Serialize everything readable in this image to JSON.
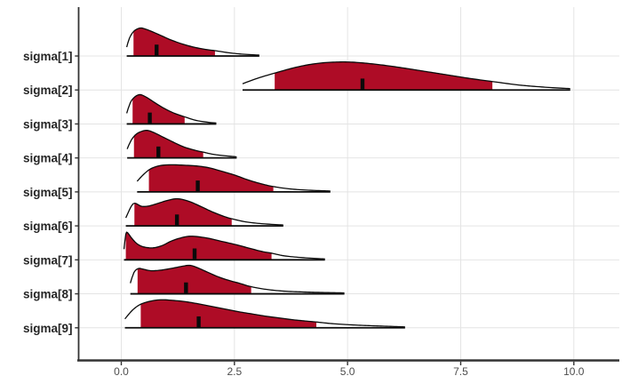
{
  "chart_data": {
    "type": "area",
    "variant": "ridgeline-density-mcmc-areas",
    "title": "",
    "xlabel": "",
    "ylabel": "",
    "legend": "none",
    "grid": "major",
    "xlim": [
      -0.95,
      11.0
    ],
    "x_ticks": [
      {
        "value": 0.0,
        "label": "0.0"
      },
      {
        "value": 2.5,
        "label": "2.5"
      },
      {
        "value": 5.0,
        "label": "5.0"
      },
      {
        "value": 7.5,
        "label": "7.5"
      },
      {
        "value": 10.0,
        "label": "10.0"
      }
    ],
    "style": {
      "fill_interval": "#AE0C26",
      "fill_outer": "#FFFFFF",
      "curve_color": "#0a0a0a",
      "median_color": "#0a0a0a",
      "grid_color": "#E4E4E4",
      "axis_color": "#333333",
      "x_label_color": "#4D4D4D",
      "y_label_color": "#262626"
    },
    "height_unit": "relative-px",
    "parameters": [
      {
        "label": "sigma[1]",
        "median": 0.78,
        "interval": [
          0.27,
          2.07
        ],
        "profile": [
          [
            0.12,
            10
          ],
          [
            0.18,
            20
          ],
          [
            0.28,
            28
          ],
          [
            0.42,
            31.5
          ],
          [
            0.55,
            30
          ],
          [
            0.7,
            27
          ],
          [
            0.9,
            22.5
          ],
          [
            1.1,
            18
          ],
          [
            1.35,
            13.5
          ],
          [
            1.6,
            10
          ],
          [
            1.85,
            7.5
          ],
          [
            2.07,
            6
          ],
          [
            2.4,
            3.5
          ],
          [
            2.7,
            2
          ],
          [
            3.05,
            1
          ]
        ]
      },
      {
        "label": "sigma[2]",
        "median": 5.33,
        "interval": [
          3.39,
          8.2
        ],
        "profile": [
          [
            2.68,
            7
          ],
          [
            3.0,
            13
          ],
          [
            3.39,
            19
          ],
          [
            3.9,
            26
          ],
          [
            4.35,
            30
          ],
          [
            4.8,
            31.5
          ],
          [
            5.2,
            31
          ],
          [
            5.7,
            28.5
          ],
          [
            6.2,
            25
          ],
          [
            6.7,
            21
          ],
          [
            7.2,
            17
          ],
          [
            7.7,
            13
          ],
          [
            8.2,
            9.5
          ],
          [
            8.8,
            5.5
          ],
          [
            9.4,
            3
          ],
          [
            9.92,
            1.5
          ]
        ]
      },
      {
        "label": "sigma[3]",
        "median": 0.63,
        "interval": [
          0.25,
          1.4
        ],
        "profile": [
          [
            0.12,
            12
          ],
          [
            0.2,
            24
          ],
          [
            0.3,
            30.5
          ],
          [
            0.41,
            33
          ],
          [
            0.52,
            31
          ],
          [
            0.65,
            27
          ],
          [
            0.8,
            22
          ],
          [
            0.95,
            17.5
          ],
          [
            1.15,
            12.5
          ],
          [
            1.4,
            8
          ],
          [
            1.65,
            4
          ],
          [
            1.9,
            2
          ],
          [
            2.1,
            1
          ]
        ]
      },
      {
        "label": "sigma[4]",
        "median": 0.82,
        "interval": [
          0.28,
          1.81
        ],
        "profile": [
          [
            0.13,
            10
          ],
          [
            0.22,
            20
          ],
          [
            0.35,
            27.5
          ],
          [
            0.55,
            31
          ],
          [
            0.72,
            28.5
          ],
          [
            0.9,
            24
          ],
          [
            1.1,
            19
          ],
          [
            1.35,
            13
          ],
          [
            1.6,
            9
          ],
          [
            1.81,
            6.5
          ],
          [
            2.1,
            3.5
          ],
          [
            2.55,
            1.2
          ]
        ]
      },
      {
        "label": "sigma[5]",
        "median": 1.69,
        "interval": [
          0.61,
          3.36
        ],
        "profile": [
          [
            0.35,
            12
          ],
          [
            0.5,
            20
          ],
          [
            0.65,
            26
          ],
          [
            0.85,
            29.5
          ],
          [
            1.1,
            30.5
          ],
          [
            1.4,
            30
          ],
          [
            1.7,
            29
          ],
          [
            1.95,
            27
          ],
          [
            2.2,
            23.5
          ],
          [
            2.5,
            19
          ],
          [
            2.8,
            13.5
          ],
          [
            3.1,
            9
          ],
          [
            3.36,
            6
          ],
          [
            3.7,
            3.5
          ],
          [
            4.1,
            2
          ],
          [
            4.62,
            1
          ]
        ]
      },
      {
        "label": "sigma[6]",
        "median": 1.23,
        "interval": [
          0.29,
          2.44
        ],
        "profile": [
          [
            0.1,
            9
          ],
          [
            0.22,
            22
          ],
          [
            0.3,
            25.5
          ],
          [
            0.45,
            22
          ],
          [
            0.62,
            22.5
          ],
          [
            0.85,
            26
          ],
          [
            1.05,
            29
          ],
          [
            1.25,
            30.5
          ],
          [
            1.5,
            27.5
          ],
          [
            1.75,
            22
          ],
          [
            2.0,
            16
          ],
          [
            2.25,
            11
          ],
          [
            2.44,
            8
          ],
          [
            2.75,
            4.5
          ],
          [
            3.1,
            2.5
          ],
          [
            3.58,
            1
          ]
        ]
      },
      {
        "label": "sigma[7]",
        "median": 1.62,
        "interval": [
          0.1,
          3.32
        ],
        "profile": [
          [
            0.06,
            12
          ],
          [
            0.1,
            29
          ],
          [
            0.14,
            30.5
          ],
          [
            0.22,
            25
          ],
          [
            0.35,
            18
          ],
          [
            0.5,
            14.5
          ],
          [
            0.7,
            13.5
          ],
          [
            0.9,
            16
          ],
          [
            1.1,
            21
          ],
          [
            1.3,
            24.5
          ],
          [
            1.5,
            26.5
          ],
          [
            1.7,
            26
          ],
          [
            1.95,
            24
          ],
          [
            2.2,
            21
          ],
          [
            2.5,
            17.5
          ],
          [
            2.8,
            13.5
          ],
          [
            3.1,
            9.5
          ],
          [
            3.32,
            7.5
          ],
          [
            3.6,
            4.5
          ],
          [
            4.0,
            2.5
          ],
          [
            4.5,
            1
          ]
        ]
      },
      {
        "label": "sigma[8]",
        "median": 1.43,
        "interval": [
          0.36,
          2.87
        ],
        "profile": [
          [
            0.2,
            12
          ],
          [
            0.28,
            24
          ],
          [
            0.38,
            28.5
          ],
          [
            0.5,
            27.5
          ],
          [
            0.65,
            26
          ],
          [
            0.85,
            26.5
          ],
          [
            1.1,
            28.5
          ],
          [
            1.35,
            31
          ],
          [
            1.52,
            32
          ],
          [
            1.7,
            29
          ],
          [
            1.9,
            24.5
          ],
          [
            2.1,
            20
          ],
          [
            2.35,
            15.5
          ],
          [
            2.6,
            12
          ],
          [
            2.87,
            8
          ],
          [
            3.2,
            5
          ],
          [
            3.6,
            3
          ],
          [
            4.2,
            1.8
          ],
          [
            4.93,
            1
          ]
        ]
      },
      {
        "label": "sigma[9]",
        "median": 1.71,
        "interval": [
          0.43,
          4.31
        ],
        "profile": [
          [
            0.08,
            10
          ],
          [
            0.25,
            20
          ],
          [
            0.43,
            26.5
          ],
          [
            0.65,
            30
          ],
          [
            0.87,
            31.5
          ],
          [
            1.1,
            31
          ],
          [
            1.4,
            29.5
          ],
          [
            1.7,
            27
          ],
          [
            2.0,
            24
          ],
          [
            2.3,
            21
          ],
          [
            2.6,
            18
          ],
          [
            2.9,
            15.5
          ],
          [
            3.2,
            13
          ],
          [
            3.5,
            11
          ],
          [
            3.8,
            9
          ],
          [
            4.1,
            7.5
          ],
          [
            4.31,
            6.5
          ],
          [
            4.7,
            4.5
          ],
          [
            5.2,
            3
          ],
          [
            5.7,
            2
          ],
          [
            6.27,
            1
          ]
        ]
      }
    ]
  }
}
